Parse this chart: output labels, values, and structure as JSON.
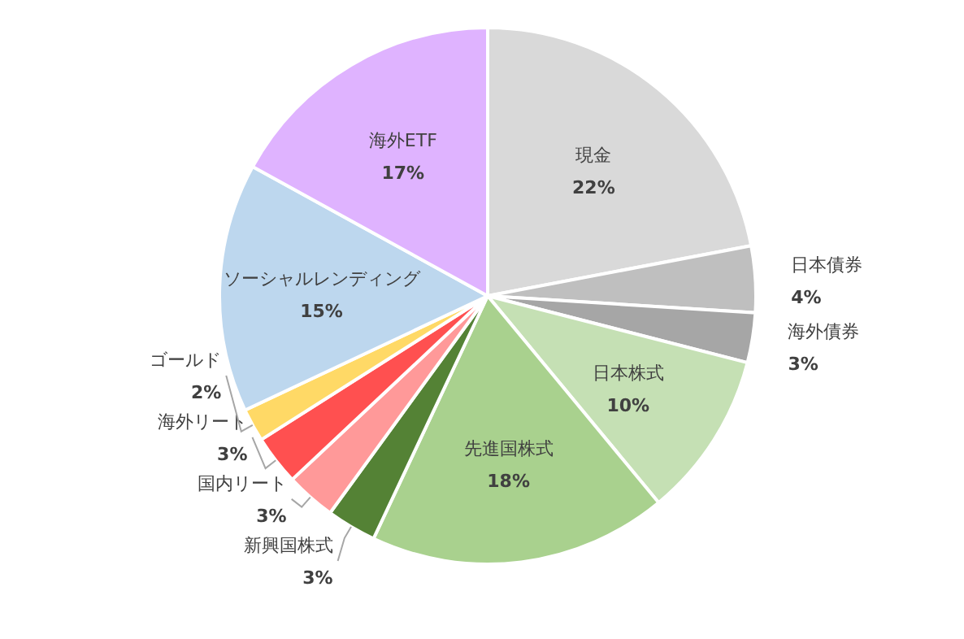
{
  "chart_data": {
    "type": "pie",
    "categories": [
      "現金",
      "日本債券",
      "海外債券",
      "日本株式",
      "先進国株式",
      "新興国株式",
      "国内リート",
      "海外リート",
      "ゴールド",
      "ソーシャルレンディング",
      "海外ETF"
    ],
    "values": [
      22,
      4,
      3,
      10,
      18,
      3,
      3,
      3,
      2,
      15,
      17
    ],
    "colors": [
      "#d9d9d9",
      "#bfbfbf",
      "#a6a6a6",
      "#c5e0b4",
      "#a9d18e",
      "#548235",
      "#ff9999",
      "#ff5050",
      "#ffd966",
      "#bdd7ee",
      "#dfb3ff"
    ],
    "value_labels": [
      "22%",
      "4%",
      "3%",
      "10%",
      "18%",
      "3%",
      "3%",
      "3%",
      "2%",
      "15%",
      "17%"
    ]
  }
}
